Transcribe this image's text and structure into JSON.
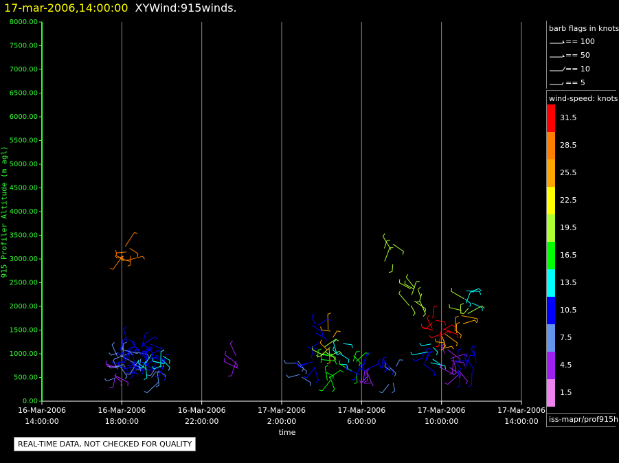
{
  "header": {
    "timestamp": "17-mar-2006,14:00:00",
    "name": "XYWind:915winds."
  },
  "notice": "REAL-TIME DATA, NOT CHECKED FOR QUALITY",
  "barb_legend": {
    "title": "barb flags in knots",
    "items": [
      {
        "label": "== 100",
        "icon": "flag-barb-icon"
      },
      {
        "label": "== 50",
        "icon": "flag-barb-icon"
      },
      {
        "label": "== 10",
        "icon": "full-barb-icon"
      },
      {
        "label": "== 5",
        "icon": "half-barb-icon"
      }
    ]
  },
  "speed_legend": {
    "title": "wind-speed: knots",
    "items": [
      {
        "label": "31.5",
        "color": "#ff0000"
      },
      {
        "label": "28.5",
        "color": "#ff7f00"
      },
      {
        "label": "25.5",
        "color": "#ffa500"
      },
      {
        "label": "22.5",
        "color": "#ffff00"
      },
      {
        "label": "19.5",
        "color": "#adff2f"
      },
      {
        "label": "16.5",
        "color": "#00ff00"
      },
      {
        "label": "13.5",
        "color": "#00ffff"
      },
      {
        "label": "10.5",
        "color": "#0000ff"
      },
      {
        "label": "7.5",
        "color": "#6495ed"
      },
      {
        "label": "4.5",
        "color": "#a020f0"
      },
      {
        "label": "1.5",
        "color": "#ee82ee"
      }
    ]
  },
  "footer": "iss-mapr/prof915h",
  "chart_data": {
    "type": "scatter",
    "title": "",
    "xlabel": "time",
    "ylabel": "915 Profiler Altitude (m agl)",
    "xlim": [
      "16-Mar-2006 14:00:00",
      "17-Mar-2006 14:00:00"
    ],
    "ylim": [
      0,
      8000
    ],
    "grid": "vertical",
    "x_ticks": [
      [
        "16-Mar-2006",
        "14:00:00"
      ],
      [
        "16-Mar-2006",
        "18:00:00"
      ],
      [
        "16-Mar-2006",
        "22:00:00"
      ],
      [
        "17-Mar-2006",
        "2:00:00"
      ],
      [
        "17-Mar-2006",
        "6:00:00"
      ],
      [
        "17-Mar-2006",
        "10:00:00"
      ],
      [
        "17-Mar-2006",
        "14:00:00"
      ]
    ],
    "y_ticks": [
      "0.00",
      "500.00",
      "1000.00",
      "1500.00",
      "2000.00",
      "2500.00",
      "3000.00",
      "3500.00",
      "4000.00",
      "4500.00",
      "5000.00",
      "5500.00",
      "6000.00",
      "6500.00",
      "7000.00",
      "7500.00",
      "8000.00"
    ],
    "series": [
      {
        "x": [
          "16-Mar-2006 17:40:00",
          "16-Mar-2006 17:50:00",
          "16-Mar-2006 18:00:00",
          "16-Mar-2006 18:10:00",
          "16-Mar-2006 18:20:00",
          "16-Mar-2006 18:30:00",
          "16-Mar-2006 18:40:00",
          "16-Mar-2006 18:50:00",
          "16-Mar-2006 19:00:00",
          "16-Mar-2006 19:10:00",
          "16-Mar-2006 19:20:00",
          "16-Mar-2006 19:30:00",
          "16-Mar-2006 19:40:00",
          "16-Mar-2006 19:50:00",
          "16-Mar-2006 20:00:00"
        ],
        "y": [
          550,
          700,
          900,
          1000,
          800,
          1100,
          650,
          950,
          1200,
          700,
          850,
          1000,
          600,
          750,
          900
        ],
        "speed": [
          4,
          6,
          8,
          9,
          10,
          11,
          9,
          8,
          10,
          11,
          12,
          9,
          8,
          10,
          12
        ]
      },
      {
        "x": [
          "16-Mar-2006 18:15:00",
          "16-Mar-2006 18:20:00"
        ],
        "y": [
          3000,
          3050
        ],
        "speed": [
          28,
          27
        ]
      },
      {
        "x": [
          "16-Mar-2006 23:40:00"
        ],
        "y": [
          800
        ],
        "speed": [
          4
        ]
      },
      {
        "x": [
          "17-Mar-2006 3:00:00",
          "17-Mar-2006 3:30:00",
          "17-Mar-2006 4:00:00",
          "17-Mar-2006 4:15:00",
          "17-Mar-2006 4:30:00",
          "17-Mar-2006 5:00:00",
          "17-Mar-2006 5:30:00",
          "17-Mar-2006 6:00:00",
          "17-Mar-2006 6:20:00",
          "17-Mar-2006 3:45:00",
          "17-Mar-2006 4:20:00"
        ],
        "y": [
          700,
          800,
          900,
          1100,
          1300,
          1000,
          750,
          650,
          500,
          1450,
          600
        ],
        "speed": [
          8,
          10,
          15,
          20,
          26,
          12,
          17,
          9,
          5,
          9,
          16
        ]
      },
      {
        "x": [
          "17-Mar-2006 7:20:00"
        ],
        "y": [
          3100
        ],
        "speed": [
          20
        ]
      },
      {
        "x": [
          "17-Mar-2006 7:00:00",
          "17-Mar-2006 7:30:00"
        ],
        "y": [
          700,
          550
        ],
        "speed": [
          9,
          7
        ]
      },
      {
        "x": [
          "17-Mar-2006 8:30:00",
          "17-Mar-2006 8:50:00"
        ],
        "y": [
          2200,
          2300
        ],
        "speed": [
          18,
          19
        ]
      },
      {
        "x": [
          "17-Mar-2006 9:00:00",
          "17-Mar-2006 9:20:00",
          "17-Mar-2006 9:40:00",
          "17-Mar-2006 10:00:00",
          "17-Mar-2006 10:10:00",
          "17-Mar-2006 10:20:00",
          "17-Mar-2006 10:40:00",
          "17-Mar-2006 11:00:00",
          "17-Mar-2006 11:30:00",
          "17-Mar-2006 10:50:00",
          "17-Mar-2006 11:10:00",
          "17-Mar-2006 11:20:00"
        ],
        "y": [
          800,
          1000,
          1550,
          1600,
          1300,
          900,
          700,
          850,
          750,
          1600,
          1950,
          2200
        ],
        "speed": [
          9,
          12,
          31,
          30,
          26,
          4,
          3,
          10,
          9,
          24,
          19,
          12
        ]
      }
    ]
  }
}
